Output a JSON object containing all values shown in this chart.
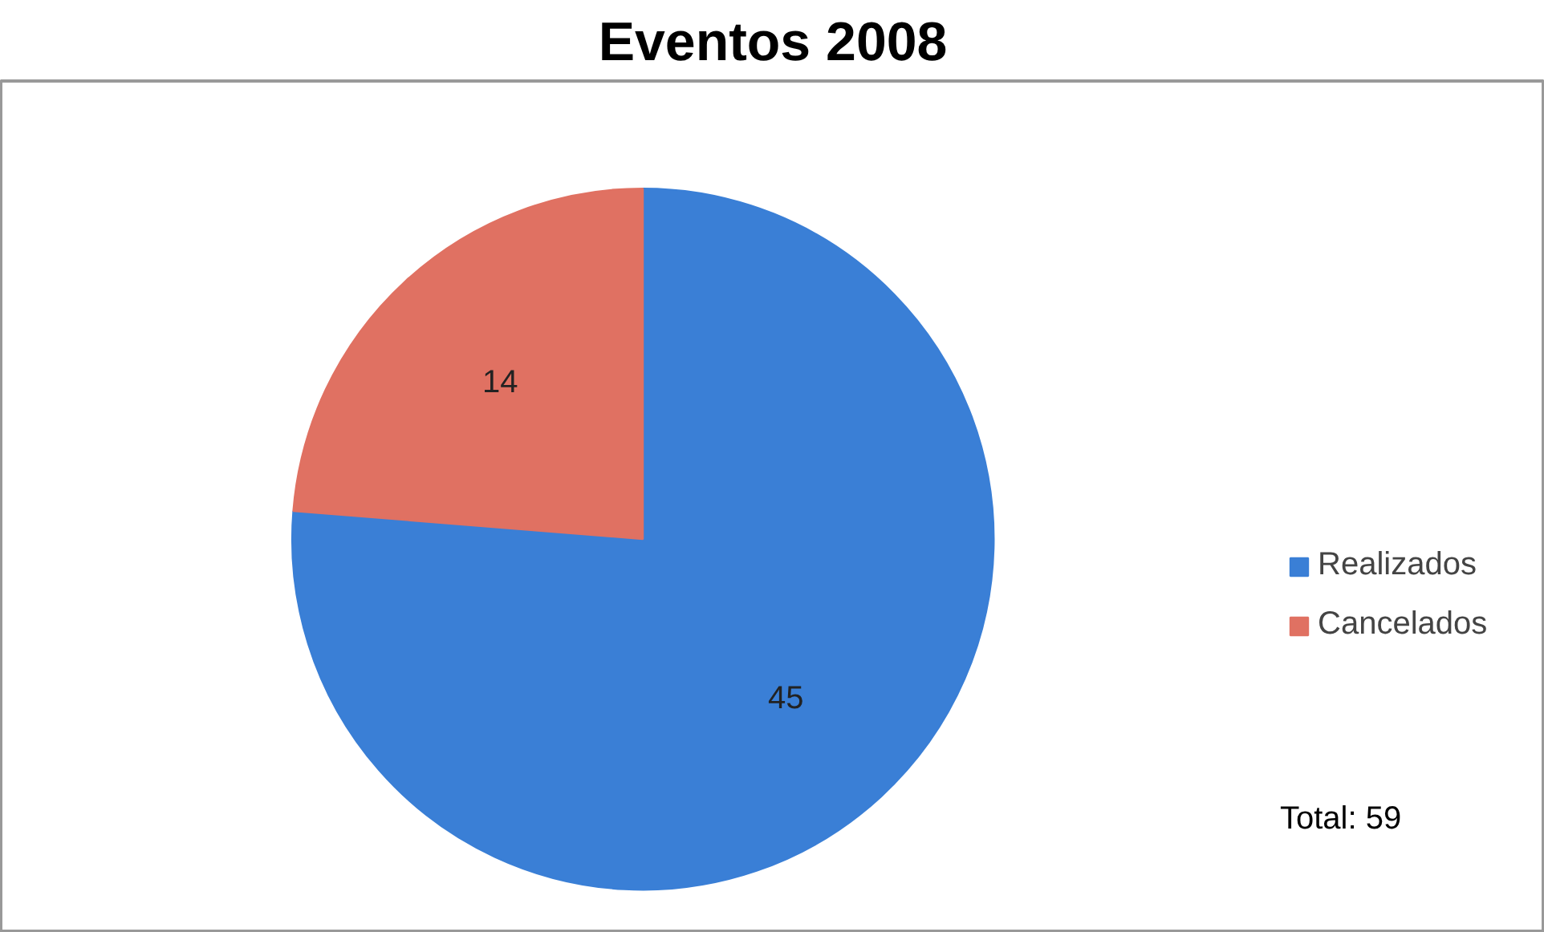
{
  "chart_data": {
    "type": "pie",
    "title": "Eventos 2008",
    "categories": [
      "Realizados",
      "Cancelados"
    ],
    "values": [
      45,
      14
    ],
    "colors": [
      "#3a7fd6",
      "#e07162"
    ],
    "data_labels": true,
    "legend": "right",
    "annotations": [
      "Total: 59"
    ]
  }
}
